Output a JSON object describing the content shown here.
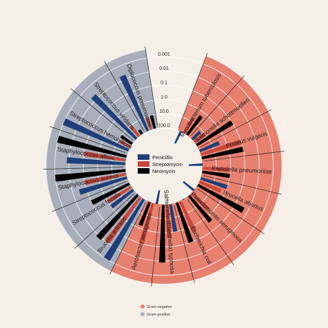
{
  "chart_data": {
    "type": "bar",
    "layout": "radial",
    "title": "",
    "axis": {
      "scale": "log",
      "direction": "inner-to-outer decreasing",
      "tick_labels": [
        "100.0",
        "10.0",
        "1.0",
        "0.1",
        "0.01",
        "0.001"
      ],
      "range": [
        100,
        0.001
      ]
    },
    "groups": [
      {
        "name": "Gram-negative",
        "color": "#e8806f"
      },
      {
        "name": "Gram-positive",
        "color": "#a9aebb"
      }
    ],
    "categories": [
      "Mycobacterium tuberculosis",
      "Salmonella schottmuelleri",
      "Proteus vulgaris",
      "Klebsiella pneumoniae",
      "Brucella abortus",
      "Pseudomonas aeruginosa",
      "Escherichia coli",
      "Salmonella (Eberthella) typhosa",
      "Aerobacter aerogenes",
      "Brucella antracis",
      "Streptococcus fecalis",
      "Staphylococcus aureus",
      "Staphylococcus albus",
      "Streptococcus hemolyticus",
      "Streptococcus viridans",
      "Diplococcus pneumoniae"
    ],
    "category_group": [
      "Gram-negative",
      "Gram-negative",
      "Gram-negative",
      "Gram-negative",
      "Gram-negative",
      "Gram-negative",
      "Gram-negative",
      "Gram-negative",
      "Gram-negative",
      "Gram-positive",
      "Gram-positive",
      "Gram-positive",
      "Gram-positive",
      "Gram-positive",
      "Gram-positive",
      "Gram-positive"
    ],
    "series": [
      {
        "name": "Penicillin",
        "color": "#1f3f7a",
        "values": [
          800,
          15,
          3,
          850,
          1,
          850,
          100,
          1,
          870,
          0.001,
          1,
          0.03,
          0.007,
          0.001,
          0.005,
          0.005
        ]
      },
      {
        "name": "Streptomycin",
        "color": "#c9483c",
        "values": [
          5,
          10,
          0.1,
          1.2,
          2,
          2,
          0.4,
          0.4,
          0.1,
          0.01,
          1,
          0.1,
          0.1,
          14,
          10,
          11
        ]
      },
      {
        "name": "Neomycin",
        "color": "#000000",
        "values": [
          2,
          0.1,
          0.1,
          1,
          0.02,
          0.4,
          0.1,
          0.008,
          1.6,
          0.007,
          0.1,
          0.001,
          0.001,
          10,
          40,
          10
        ]
      }
    ]
  },
  "legend": {
    "items": [
      {
        "label": "Penicillin",
        "color": "#1f3f7a"
      },
      {
        "label": "Streptomycin",
        "color": "#c9483c"
      },
      {
        "label": "Neomycin",
        "color": "#000000"
      }
    ],
    "group_items": [
      {
        "label": "Gram-negative",
        "color": "#e8806f"
      },
      {
        "label": "Gram-positive",
        "color": "#a9aebb"
      }
    ]
  }
}
